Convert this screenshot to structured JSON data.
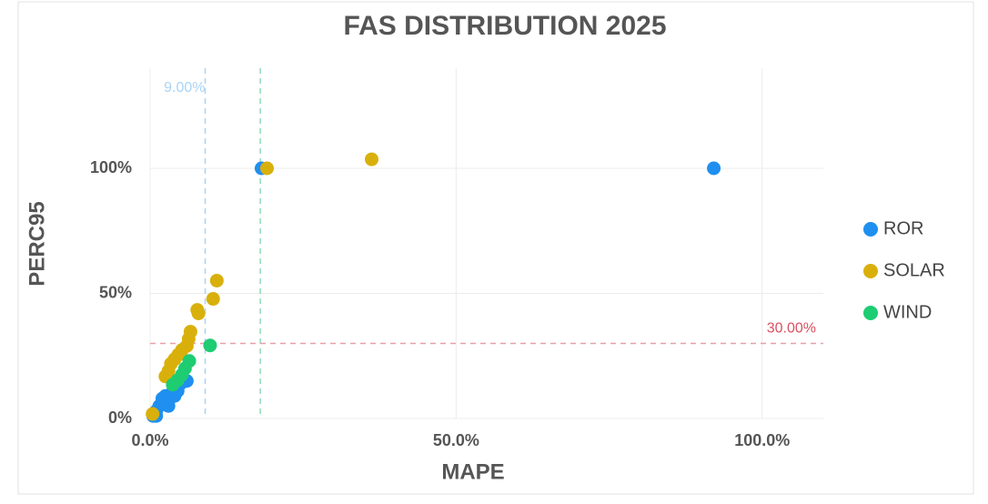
{
  "chart_data": {
    "type": "scatter",
    "title": "FAS DISTRIBUTION 2025",
    "x_label": "MAPE",
    "y_label": "PERC95",
    "xlim": [
      0,
      110
    ],
    "ylim": [
      0,
      140
    ],
    "xticks": [
      {
        "value": 0,
        "label": "0.0%"
      },
      {
        "value": 50,
        "label": "50.0%"
      },
      {
        "value": 100,
        "label": "100.0%"
      }
    ],
    "yticks": [
      {
        "value": 0,
        "label": "0%"
      },
      {
        "value": 50,
        "label": "50%"
      },
      {
        "value": 100,
        "label": "100%"
      }
    ],
    "grid": true,
    "legend": "right",
    "reference_lines": [
      {
        "axis": "x",
        "value": 9,
        "label": "9.00%",
        "color": "#a9d3f5"
      },
      {
        "axis": "x",
        "value": 18,
        "color": "#8fdcb8"
      },
      {
        "axis": "y",
        "value": 30,
        "label": "30.00%",
        "color": "#e8a0a8"
      }
    ],
    "series": [
      {
        "name": "ROR",
        "color": "#1f8ff0",
        "x": [
          0.5,
          1,
          1,
          1.5,
          2,
          2,
          2.5,
          3,
          3,
          3.5,
          4,
          4.5,
          5,
          6,
          18.2,
          92.1
        ],
        "values": [
          1,
          1,
          3,
          5,
          6,
          8,
          9,
          5,
          7,
          10,
          9,
          11,
          14,
          15,
          100,
          100
        ]
      },
      {
        "name": "SOLAR",
        "color": "#d9b00b",
        "x": [
          0.4,
          2.5,
          3,
          3.4,
          4,
          4.6,
          5.2,
          6,
          6.3,
          6.6,
          7.7,
          7.9,
          10.3,
          10.9,
          19.1,
          36.2
        ],
        "values": [
          1.8,
          16.8,
          19,
          21.9,
          23.7,
          25.5,
          27.4,
          29,
          31.8,
          34.7,
          43.4,
          42,
          47.8,
          55.1,
          100,
          103.6
        ]
      },
      {
        "name": "WIND",
        "color": "#1ecc72",
        "x": [
          3.7,
          4.5,
          5.2,
          5.7,
          6.4,
          9.8
        ],
        "values": [
          13.5,
          15.3,
          17.5,
          20,
          23,
          29.2
        ]
      }
    ]
  }
}
